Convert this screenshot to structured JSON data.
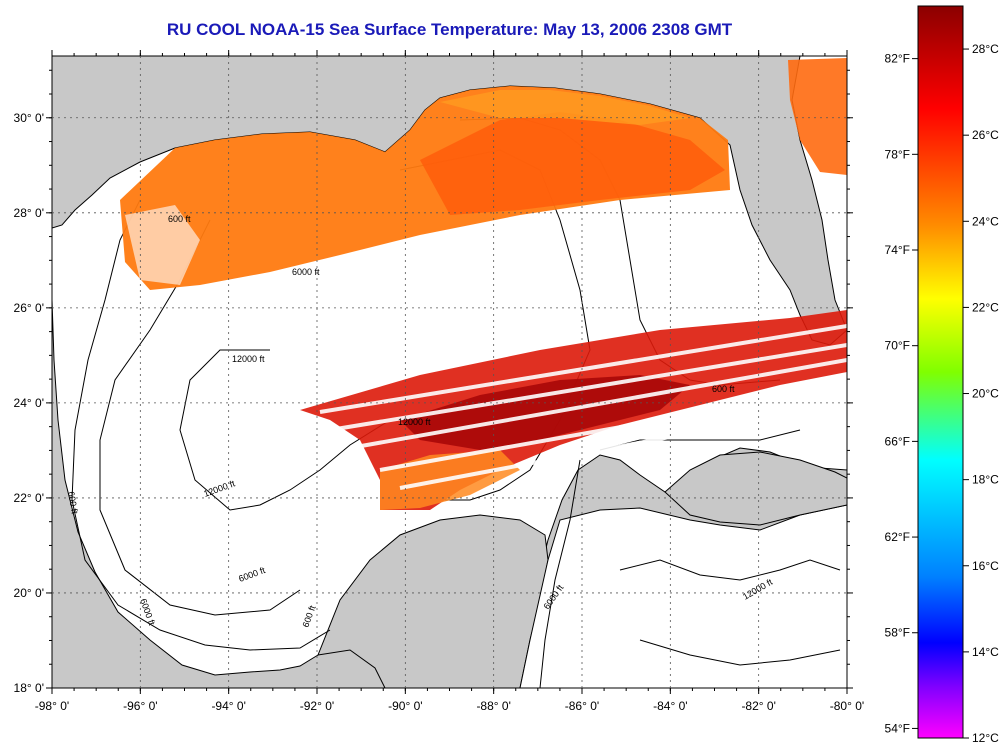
{
  "title": "RU COOL  NOAA-15  Sea Surface Temperature:  May 13, 2006 2308 GMT",
  "map": {
    "lon_labels": [
      "-98° 0'",
      "-96° 0'",
      "-94° 0'",
      "-92° 0'",
      "-90° 0'",
      "-88° 0'",
      "-86° 0'",
      "-84° 0'",
      "-82° 0'",
      "-80° 0'"
    ],
    "lat_labels": [
      "30° 0'",
      "28° 0'",
      "26° 0'",
      "24° 0'",
      "22° 0'",
      "20° 0'",
      "18° 0'"
    ],
    "lon_range": [
      -98,
      -80
    ],
    "lat_range": [
      18,
      31.3
    ],
    "contour_labels": [
      "600 ft",
      "6000 ft",
      "12000 ft",
      "600 ft",
      "6000 ft",
      "12000 ft",
      "600 ft",
      "6000 ft",
      "12000 ft",
      "600 ft",
      "6000 ft",
      "12000 ft"
    ],
    "colors": {
      "land": "#c8c8c8",
      "water": "#ffffff",
      "grid": "#555555"
    }
  },
  "colorbar": {
    "celsius_labels": [
      "28°C",
      "26°C",
      "24°C",
      "22°C",
      "20°C",
      "18°C",
      "16°C",
      "14°C",
      "12°C"
    ],
    "fahrenheit_labels": [
      "82°F",
      "78°F",
      "74°F",
      "70°F",
      "66°F",
      "62°F",
      "58°F",
      "54°F"
    ],
    "range_c": [
      12,
      29
    ],
    "gradient_colors": [
      "#8b0000",
      "#ff0000",
      "#ff8c00",
      "#ffff00",
      "#80ff00",
      "#00ffff",
      "#0080ff",
      "#0000ff",
      "#8000ff",
      "#ff00ff"
    ]
  }
}
